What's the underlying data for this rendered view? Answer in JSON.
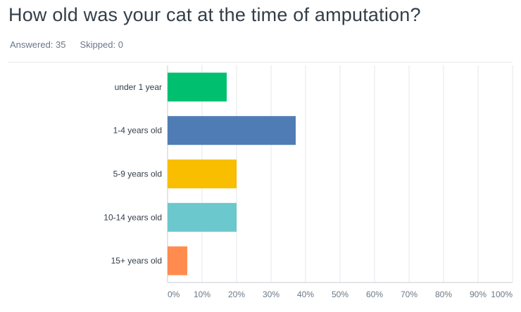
{
  "question": {
    "title": "How old was your cat at the time of amputation?",
    "answered_label": "Answered: 35",
    "skipped_label": "Skipped: 0"
  },
  "chart_data": {
    "type": "bar",
    "orientation": "horizontal",
    "title": "How old was your cat at the time of amputation?",
    "categories": [
      "under 1 year",
      "1-4 years old",
      "5-9 years old",
      "10-14 years old",
      "15+ years old"
    ],
    "values": [
      17.14,
      37.14,
      20.0,
      20.0,
      5.71
    ],
    "value_unit": "percent",
    "xlim": [
      0,
      100
    ],
    "xticks": [
      0,
      10,
      20,
      30,
      40,
      50,
      60,
      70,
      80,
      90,
      100
    ],
    "xtick_labels": [
      "0%",
      "10%",
      "20%",
      "30%",
      "40%",
      "50%",
      "60%",
      "70%",
      "80%",
      "90%",
      "100%"
    ],
    "colors": [
      "#00bf6f",
      "#507cb6",
      "#f9be00",
      "#6bc8cd",
      "#ff8b4f"
    ],
    "gridlines": true,
    "legend": "none"
  }
}
